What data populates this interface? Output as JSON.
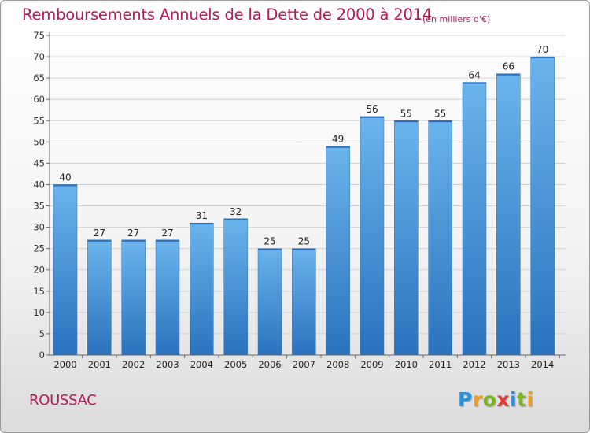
{
  "chart_data": {
    "type": "bar",
    "title": "Remboursements Annuels de la Dette de 2000 à 2014",
    "unit_label": "(en milliers d'€)",
    "categories": [
      "2000",
      "2001",
      "2002",
      "2003",
      "2004",
      "2005",
      "2006",
      "2007",
      "2008",
      "2009",
      "2010",
      "2011",
      "2012",
      "2013",
      "2014"
    ],
    "values": [
      40,
      27,
      27,
      27,
      31,
      32,
      25,
      25,
      49,
      56,
      55,
      55,
      64,
      66,
      70
    ],
    "ylim": [
      0,
      75
    ],
    "yticks": [
      0,
      5,
      10,
      15,
      20,
      25,
      30,
      35,
      40,
      45,
      50,
      55,
      60,
      65,
      70,
      75
    ],
    "grid": true,
    "bar_color": "#3f8fd8",
    "bar_color_light": "#6bb4ec",
    "bar_color_dark": "#2a72bd",
    "grid_color": "#d2d2d2",
    "text_color": "#b5195a"
  },
  "footer": {
    "commune": "ROUSSAC",
    "logo_letters": [
      {
        "char": "P",
        "color": "#2a8fd6"
      },
      {
        "char": "r",
        "color": "#f39c12"
      },
      {
        "char": "o",
        "color": "#7ab51d"
      },
      {
        "char": "x",
        "color": "#e43a2f"
      },
      {
        "char": "i",
        "color": "#2a8fd6"
      },
      {
        "char": "t",
        "color": "#7ab51d"
      },
      {
        "char": "i",
        "color": "#f39c12"
      }
    ]
  }
}
